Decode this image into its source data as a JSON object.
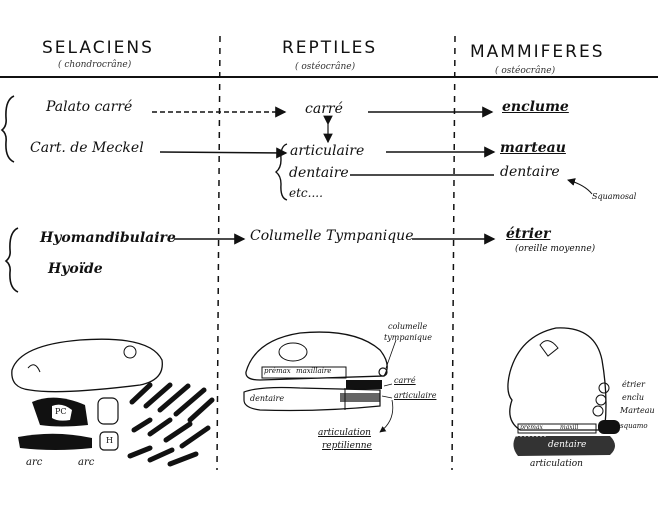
{
  "columns": {
    "selaciens": {
      "title": "SELACIENS",
      "sub": "( chondrocrâne)"
    },
    "reptiles": {
      "title": "REPTILES",
      "sub": "( ostéocrâne)"
    },
    "mammiferes": {
      "title": "MAMMIFERES",
      "sub": "( ostéocrâne)"
    }
  },
  "rows": {
    "palato_carre": "Palato carré",
    "carre": "carré",
    "enclume": "enclume",
    "cart_meckel": "Cart. de Meckel",
    "articulaire": "articulaire",
    "dentaire_rep": "dentaire",
    "etc": "etc....",
    "marteau": "marteau",
    "dentaire_mam": "dentaire",
    "squamosal": "Squamosal",
    "hyomandibulaire": "Hyomandibulaire",
    "hyoide": "Hyoïde",
    "columelle": "Columelle Tympanique",
    "etrier": "étrier",
    "oreille_moyenne": "(oreille moyenne)"
  },
  "sketches": {
    "selacien": {
      "pc": "PC",
      "h": "H",
      "arc1": "arc",
      "arc2": "arc"
    },
    "reptile": {
      "columelle": "columelle",
      "tympanique": "tympanique",
      "premax": "prémax",
      "maxillaire": "maxillaire",
      "dentaire": "dentaire",
      "carre": "carré",
      "articulaire": "articulaire",
      "artic1": "articulation",
      "artic2": "reptilienne"
    },
    "mammifere": {
      "etrier": "étrier",
      "enclu": "enclu",
      "marteau": "Marteau",
      "premax": "prémax",
      "maxill": "maxill",
      "squam": "squamo",
      "dentaire": "dentaire",
      "articulation": "articulation"
    }
  }
}
